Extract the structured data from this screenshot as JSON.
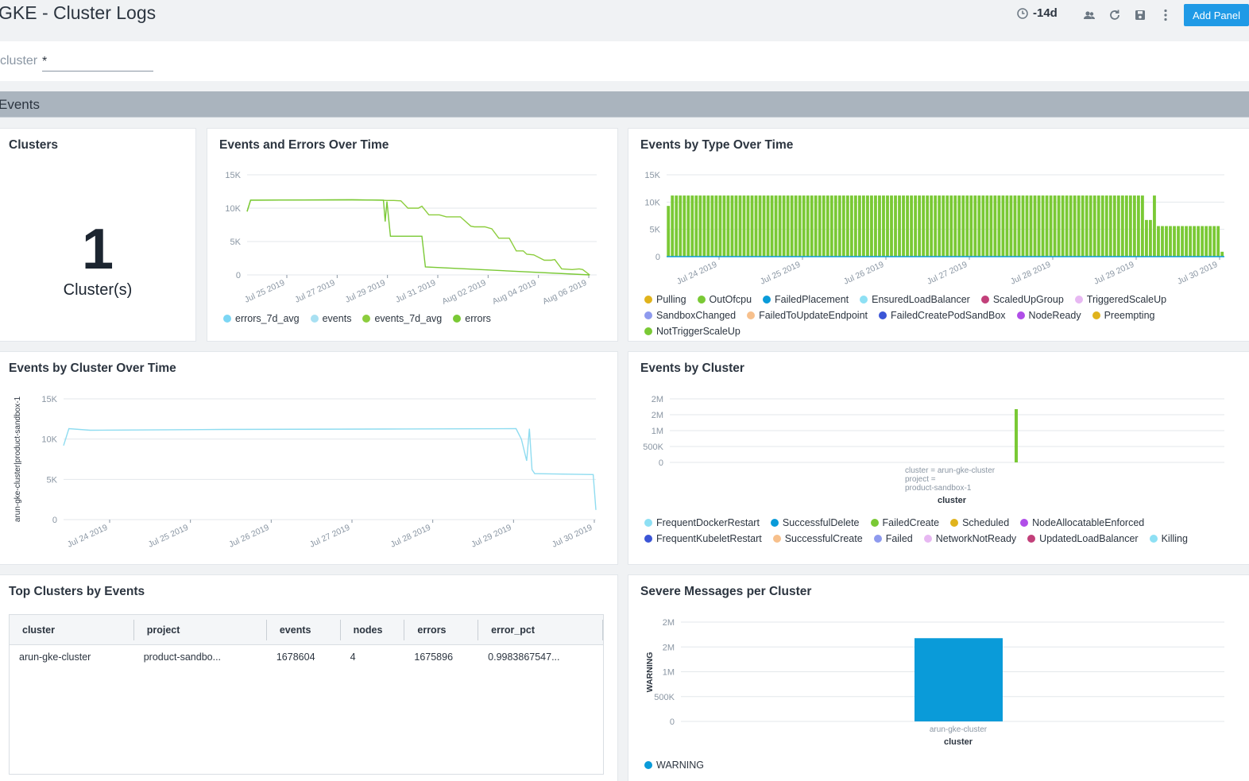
{
  "header": {
    "title": "GKE - Cluster Logs",
    "time_range": "-14d",
    "add_panel_label": "Add Panel"
  },
  "filter": {
    "label": "cluster",
    "value": "*"
  },
  "section": {
    "title": "Events"
  },
  "panels": {
    "clusters": {
      "title": "Clusters",
      "value": "1",
      "unit": "Cluster(s)"
    },
    "events_errors": {
      "title": "Events and Errors Over Time"
    },
    "events_by_type": {
      "title": "Events by Type Over Time"
    },
    "events_by_cluster_time": {
      "title": "Events by Cluster Over Time"
    },
    "events_by_cluster": {
      "title": "Events by Cluster"
    },
    "top_clusters": {
      "title": "Top Clusters by Events"
    },
    "severe": {
      "title": "Severe Messages per Cluster"
    }
  },
  "chart_data": [
    {
      "id": "events_errors",
      "type": "line",
      "title": "Events and Errors Over Time",
      "ylim": [
        0,
        15000
      ],
      "yticks": [
        "15K",
        "10K",
        "5K",
        "0"
      ],
      "xticks": [
        "Jul 25 2019",
        "Jul 27 2019",
        "Jul 29 2019",
        "Jul 31 2019",
        "Aug 02 2019",
        "Aug 04 2019",
        "Aug 06 2019"
      ],
      "series": [
        {
          "name": "errors_7d_avg",
          "color": "#7cd6f4",
          "values": []
        },
        {
          "name": "events",
          "color": "#a8e0f2",
          "values": []
        },
        {
          "name": "events_7d_avg",
          "color": "#8ccd3d",
          "x": [
            0,
            0.01,
            0.03,
            0.3,
            0.38,
            0.4,
            0.42,
            0.44,
            0.46,
            0.49,
            0.5,
            0.52,
            0.55,
            0.57,
            0.61,
            0.64,
            0.65,
            0.68,
            0.7,
            0.72,
            0.75,
            0.77,
            0.79,
            0.8,
            0.82,
            0.85,
            0.87,
            0.88,
            0.9,
            0.93,
            0.95,
            0.96,
            0.98
          ],
          "values": [
            9500,
            11200,
            11200,
            11250,
            11200,
            11150,
            11150,
            11100,
            10000,
            10000,
            10300,
            9000,
            9000,
            8700,
            8700,
            7300,
            7200,
            7200,
            6900,
            5500,
            5500,
            3600,
            3600,
            3100,
            3000,
            2200,
            2200,
            2300,
            900,
            800,
            900,
            800,
            0
          ]
        },
        {
          "name": "errors",
          "color": "#7ac935",
          "x": [
            0,
            0.01,
            0.03,
            0.3,
            0.39,
            0.395,
            0.4,
            0.41,
            0.42,
            0.47,
            0.5,
            0.51,
            0.98
          ],
          "values": [
            9500,
            11200,
            11200,
            11250,
            11200,
            8000,
            11000,
            5800,
            5800,
            5800,
            5800,
            1200,
            0
          ]
        }
      ]
    },
    {
      "id": "events_by_type",
      "type": "bar",
      "title": "Events by Type Over Time",
      "ylim": [
        0,
        15000
      ],
      "yticks": [
        "15K",
        "10K",
        "5K",
        "0"
      ],
      "xticks": [
        "Jul 24 2019",
        "Jul 25 2019",
        "Jul 26 2019",
        "Jul 27 2019",
        "Jul 28 2019",
        "Jul 29 2019",
        "Jul 30 2019"
      ],
      "bar_value": 11200,
      "drop_value": 5600,
      "series": [
        {
          "name": "Pulling",
          "color": "#e0b31c"
        },
        {
          "name": "OutOfcpu",
          "color": "#7ac935"
        },
        {
          "name": "FailedPlacement",
          "color": "#0a9bd9"
        },
        {
          "name": "EnsuredLoadBalancer",
          "color": "#8ee0f4"
        },
        {
          "name": "ScaledUpGroup",
          "color": "#c2407a"
        },
        {
          "name": "TriggeredScaleUp",
          "color": "#e7b8f2"
        },
        {
          "name": "SandboxChanged",
          "color": "#8e9aee"
        },
        {
          "name": "FailedToUpdateEndpoint",
          "color": "#f7c08c"
        },
        {
          "name": "FailedCreatePodSandBox",
          "color": "#3b55d6"
        },
        {
          "name": "NodeReady",
          "color": "#b04ee8"
        },
        {
          "name": "Preempting",
          "color": "#e0b31c"
        },
        {
          "name": "NotTriggerScaleUp",
          "color": "#7ac935"
        }
      ]
    },
    {
      "id": "events_by_cluster_time",
      "type": "line",
      "title": "Events by Cluster Over Time",
      "ylabel": "arun-gke-cluster|product-sandbox-1",
      "ylim": [
        0,
        15000
      ],
      "yticks": [
        "15K",
        "10K",
        "5K",
        "0"
      ],
      "xticks": [
        "Jul 24 2019",
        "Jul 25 2019",
        "Jul 26 2019",
        "Jul 27 2019",
        "Jul 28 2019",
        "Jul 29 2019",
        "Jul 30 2019"
      ],
      "series": [
        {
          "name": "arun-gke-cluster|product-sandbox-1",
          "color": "#8fdcf0",
          "x": [
            0,
            0.01,
            0.05,
            0.3,
            0.6,
            0.85,
            0.86,
            0.87,
            0.875,
            0.88,
            0.885,
            0.89,
            0.995,
            1.0
          ],
          "values": [
            9200,
            11300,
            11100,
            11200,
            11250,
            11300,
            10000,
            7300,
            11300,
            6200,
            5700,
            5700,
            5600,
            1200
          ]
        }
      ]
    },
    {
      "id": "events_by_cluster",
      "type": "bar",
      "title": "Events by Cluster",
      "ylim": [
        0,
        2000000
      ],
      "yticks": [
        "2M",
        "2M",
        "1M",
        "500K",
        "0"
      ],
      "categories": [
        "cluster = arun-gke-cluster\nproject =\nproduct-sandbox-1"
      ],
      "xlabel": "cluster",
      "series": [
        {
          "name": "FrequentDockerRestart",
          "color": "#8ee0f4"
        },
        {
          "name": "SuccessfulDelete",
          "color": "#0a9bd9"
        },
        {
          "name": "FailedCreate",
          "color": "#7ac935",
          "values": [
            1675896
          ]
        },
        {
          "name": "Scheduled",
          "color": "#e0b31c"
        },
        {
          "name": "NodeAllocatableEnforced",
          "color": "#b04ee8"
        },
        {
          "name": "FrequentKubeletRestart",
          "color": "#3b55d6"
        },
        {
          "name": "SuccessfulCreate",
          "color": "#f7c08c"
        },
        {
          "name": "Failed",
          "color": "#8e9aee"
        },
        {
          "name": "NetworkNotReady",
          "color": "#e7b8f2"
        },
        {
          "name": "UpdatedLoadBalancer",
          "color": "#c2407a"
        },
        {
          "name": "Killing",
          "color": "#8ee0f4"
        }
      ]
    },
    {
      "id": "top_clusters",
      "type": "table",
      "title": "Top Clusters by Events",
      "columns": [
        "cluster",
        "project",
        "events",
        "nodes",
        "errors",
        "error_pct"
      ],
      "rows": [
        [
          "arun-gke-cluster",
          "product-sandbo...",
          "1678604",
          "4",
          "1675896",
          "0.9983867547..."
        ]
      ]
    },
    {
      "id": "severe",
      "type": "bar",
      "title": "Severe Messages per Cluster",
      "ylim": [
        0,
        2000000
      ],
      "yticks": [
        "2M",
        "2M",
        "1M",
        "500K",
        "0"
      ],
      "ylabel": "WARNING",
      "xlabel": "cluster",
      "categories": [
        "arun-gke-cluster"
      ],
      "series": [
        {
          "name": "WARNING",
          "color": "#0a9bd9",
          "values": [
            1675896
          ]
        }
      ]
    }
  ]
}
